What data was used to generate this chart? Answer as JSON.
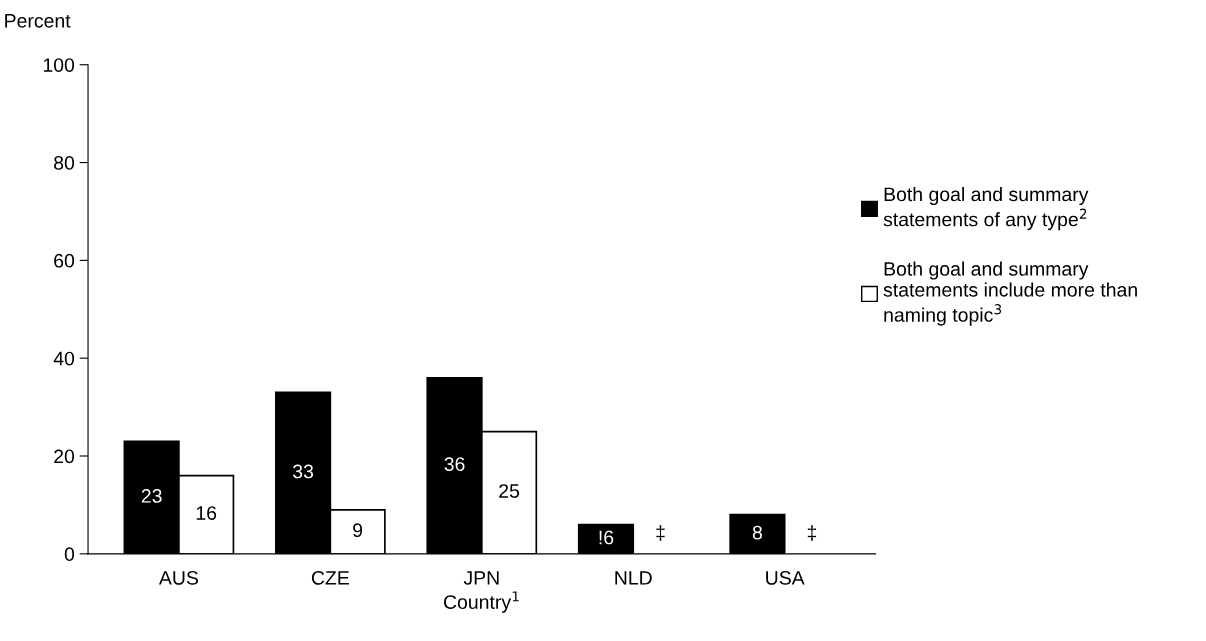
{
  "chart_data": {
    "type": "bar",
    "ylabel": "Percent",
    "xlabel": "Country$^{1}$",
    "categories": [
      "AUS",
      "CZE",
      "JPN",
      "NLD",
      "USA"
    ],
    "series": [
      {
        "name": "Both goal and summary\nstatements of any type$^{2}$",
        "color": "#000000",
        "values": [
          23,
          33,
          36,
          6,
          8
        ],
        "value_labels": [
          "23",
          "33",
          "36",
          "!6",
          "8"
        ]
      },
      {
        "name": "Both goal and summary\nstatements include more than\nnaming topic$^{3}$",
        "color": "#ffffff",
        "values": [
          16,
          9,
          25,
          null,
          null
        ],
        "value_labels": [
          "16",
          "9",
          "25",
          "‡",
          "‡"
        ]
      }
    ],
    "ylim": [
      0,
      100
    ],
    "yticks": [
      0,
      20,
      40,
      60,
      80,
      100
    ],
    "grid": false,
    "legend": "right"
  }
}
